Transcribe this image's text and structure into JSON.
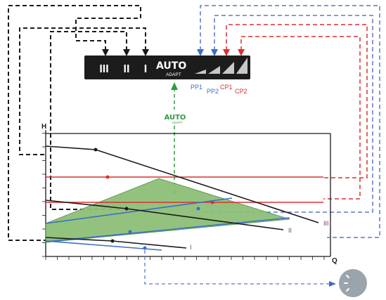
{
  "control_panel": {
    "mode_labels": [
      "III",
      "II",
      "I"
    ],
    "auto_label": "AUTO",
    "adapt_label": "ADAPT"
  },
  "mode_labels_below": {
    "pp1": "PP1",
    "pp2": "PP2",
    "cp1": "CP1",
    "cp2": "CP2"
  },
  "auto_adapt_callout": {
    "auto": "AUTO",
    "adapt": "ADAPT"
  },
  "chart": {
    "y_axis_label": "H",
    "x_axis_label": "Q",
    "curve_labels": [
      "III",
      "II",
      "I"
    ]
  },
  "colors": {
    "fixed_speed": "#1a1a1a",
    "proportional_pressure": "#3a6fc4",
    "constant_pressure": "#d93030",
    "auto_adapt": "#2e9e3e",
    "auto_area_fill": "#8dbf78",
    "night_icon_bg": "#9aa4ad"
  },
  "icons": {
    "night_setback": "moon-sun-icon"
  }
}
